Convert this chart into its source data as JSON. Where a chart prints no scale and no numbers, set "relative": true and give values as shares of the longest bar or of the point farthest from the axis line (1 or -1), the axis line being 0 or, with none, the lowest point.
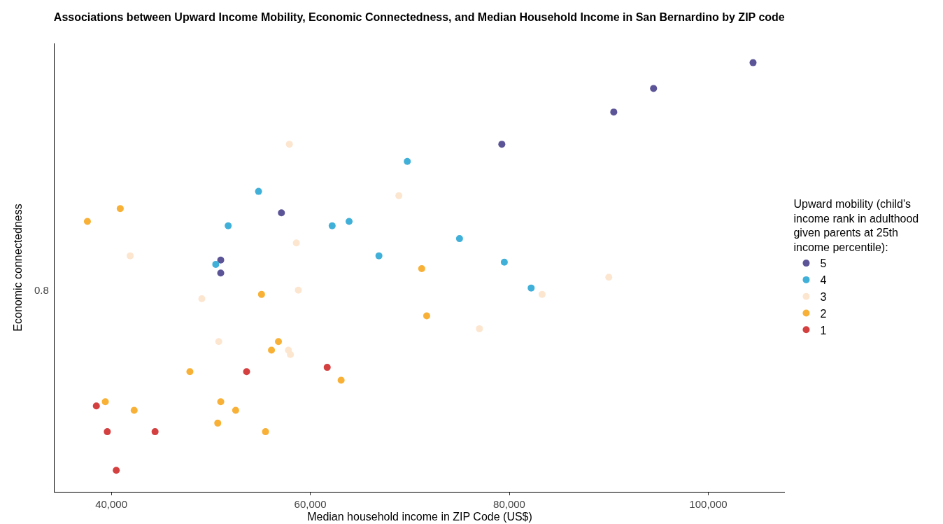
{
  "chart_data": {
    "type": "scatter",
    "title": "Associations between Upward Income Mobility, Economic Connectedness, and Median Household Income in San Bernardino by ZIP code",
    "xlabel": "Median household income in ZIP Code (US$)",
    "ylabel": "Economic connectedness",
    "legend_title": "Upward mobility (child's income rank in adulthood given parents at 25th income percentile):",
    "relative": true,
    "xlim": [
      34300,
      107700
    ],
    "xticks": [
      {
        "value": 40000,
        "label": "40,000"
      },
      {
        "value": 60000,
        "label": "60,000"
      },
      {
        "value": 80000,
        "label": "80,000"
      },
      {
        "value": 100000,
        "label": "100,000"
      }
    ],
    "annotations": [
      "0.8"
    ],
    "grid": false,
    "legend": "right",
    "marker": "circle",
    "series": [
      {
        "name": "5",
        "color": "#5b5597",
        "x": [
          104500,
          94500,
          90500,
          79250,
          57100,
          51000,
          51000
        ],
        "values": [
          1,
          0.94,
          0.885,
          0.81,
          0.65,
          0.54,
          0.51
        ]
      },
      {
        "name": "4",
        "color": "#40b0d9",
        "x": [
          69750,
          54800,
          51750,
          62200,
          63900,
          75000,
          66900,
          50500,
          79500,
          82200
        ],
        "values": [
          0.77,
          0.7,
          0.62,
          0.62,
          0.63,
          0.59,
          0.55,
          0.53,
          0.535,
          0.475
        ]
      },
      {
        "name": "3",
        "color": "#fde6d0",
        "x": [
          57900,
          68900,
          58600,
          41900,
          90000,
          58800,
          49100,
          83300,
          77000,
          50800,
          57800,
          58000
        ],
        "values": [
          0.81,
          0.69,
          0.58,
          0.55,
          0.5,
          0.47,
          0.45,
          0.46,
          0.38,
          0.35,
          0.33,
          0.32
        ]
      },
      {
        "name": "2",
        "color": "#f8b136",
        "x": [
          40900,
          37600,
          71200,
          55100,
          71700,
          56800,
          56100,
          47900,
          63100,
          39400,
          51000,
          42300,
          52500,
          50700,
          55500
        ],
        "values": [
          0.66,
          0.63,
          0.52,
          0.46,
          0.41,
          0.35,
          0.33,
          0.28,
          0.26,
          0.21,
          0.21,
          0.19,
          0.19,
          0.16,
          0.14
        ]
      },
      {
        "name": "1",
        "color": "#d43f3f",
        "x": [
          53600,
          61700,
          38500,
          39600,
          44400,
          40500
        ],
        "values": [
          0.28,
          0.29,
          0.2,
          0.14,
          0.14,
          0.05
        ]
      }
    ]
  }
}
